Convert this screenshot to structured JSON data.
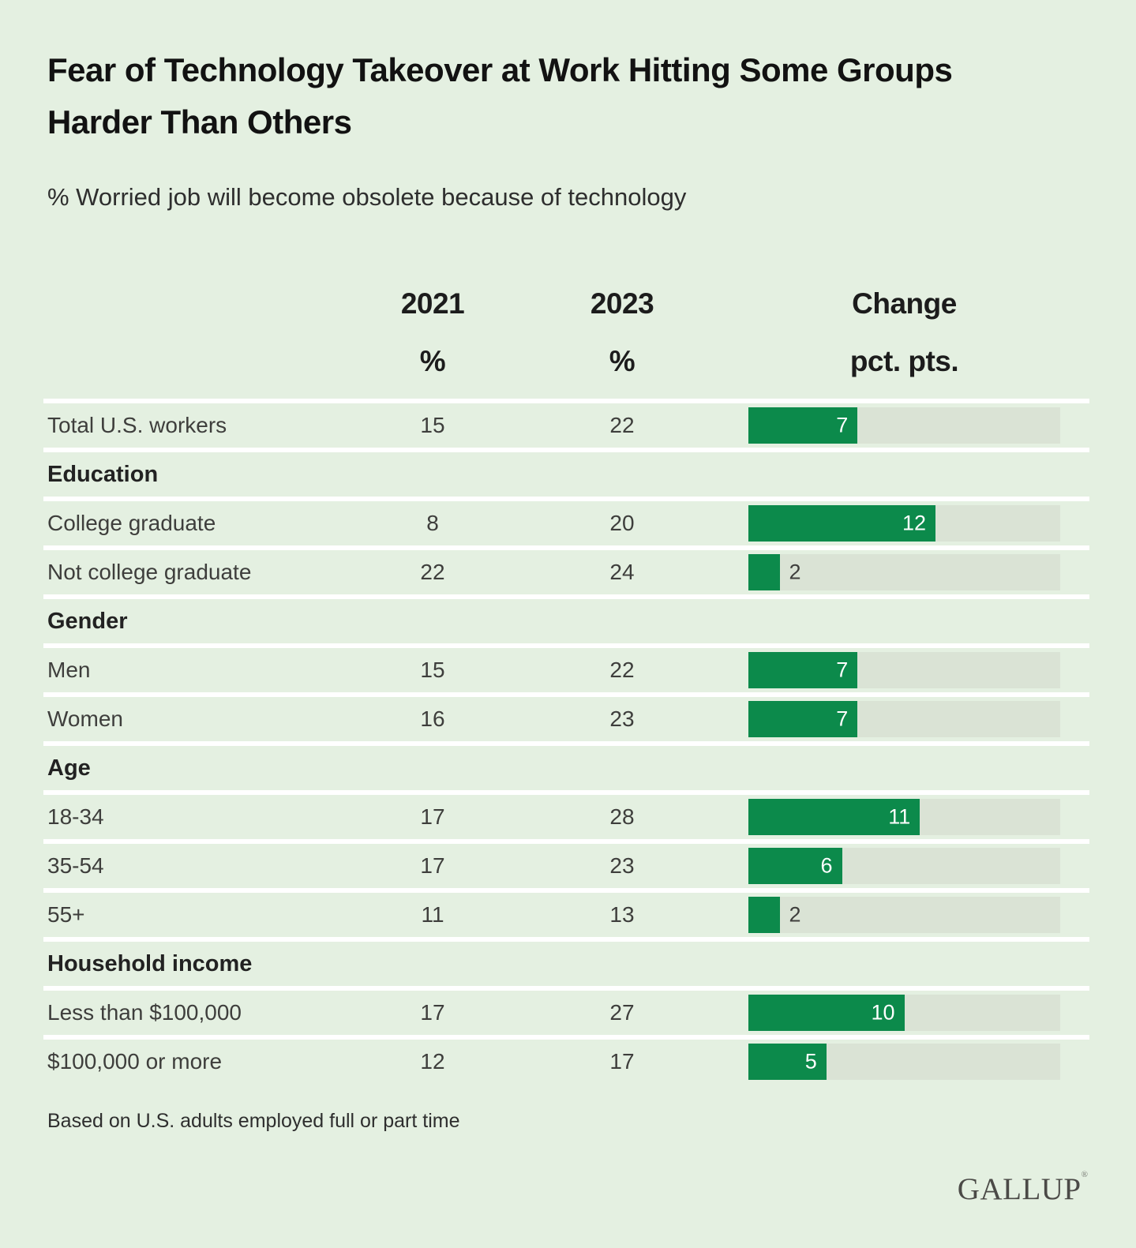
{
  "title": {
    "line1": "Fear of Technology Takeover at Work Hitting Some Groups",
    "line2": "Harder Than Others"
  },
  "subtitle": "% Worried job will become obsolete because of technology",
  "columns": {
    "year1": "2021",
    "year1_unit": "%",
    "year2": "2023",
    "year2_unit": "%",
    "change": "Change",
    "change_unit": "pct. pts."
  },
  "rows": [
    {
      "type": "data",
      "label": "Total U.S. workers",
      "y2021": "15",
      "y2023": "22",
      "change": 7
    },
    {
      "type": "section",
      "label": "Education"
    },
    {
      "type": "data",
      "label": "College graduate",
      "y2021": "8",
      "y2023": "20",
      "change": 12
    },
    {
      "type": "data",
      "label": "Not college graduate",
      "y2021": "22",
      "y2023": "24",
      "change": 2
    },
    {
      "type": "section",
      "label": "Gender"
    },
    {
      "type": "data",
      "label": "Men",
      "y2021": "15",
      "y2023": "22",
      "change": 7
    },
    {
      "type": "data",
      "label": "Women",
      "y2021": "16",
      "y2023": "23",
      "change": 7
    },
    {
      "type": "section",
      "label": "Age"
    },
    {
      "type": "data",
      "label": "18-34",
      "y2021": "17",
      "y2023": "28",
      "change": 11
    },
    {
      "type": "data",
      "label": "35-54",
      "y2021": "17",
      "y2023": "23",
      "change": 6
    },
    {
      "type": "data",
      "label": "55+",
      "y2021": "11",
      "y2023": "13",
      "change": 2
    },
    {
      "type": "section",
      "label": "Household income"
    },
    {
      "type": "data",
      "label": "Less than $100,000",
      "y2021": "17",
      "y2023": "27",
      "change": 10
    },
    {
      "type": "data",
      "label": "$100,000 or more",
      "y2021": "12",
      "y2023": "17",
      "change": 5
    }
  ],
  "footnote": "Based on U.S. adults employed full or part time",
  "logo": {
    "text": "GALLUP",
    "registered_mark": "®"
  },
  "colors": {
    "background": "#e4f0e1",
    "bar_fill": "#0c8a4b",
    "bar_track": "#dae3d5",
    "separator": "#ffffff",
    "title_text": "#121212",
    "body_text": "#3e3e3c"
  },
  "chart_data": {
    "type": "bar",
    "title": "Fear of Technology Takeover at Work Hitting Some Groups Harder Than Others",
    "subtitle": "% Worried job will become obsolete because of technology",
    "categories": [
      "Total U.S. workers",
      "College graduate",
      "Not college graduate",
      "Men",
      "Women",
      "18-34",
      "35-54",
      "55+",
      "Less than $100,000",
      "$100,000 or more"
    ],
    "groups": [
      {
        "name": "Education",
        "members": [
          "College graduate",
          "Not college graduate"
        ]
      },
      {
        "name": "Gender",
        "members": [
          "Men",
          "Women"
        ]
      },
      {
        "name": "Age",
        "members": [
          "18-34",
          "35-54",
          "55+"
        ]
      },
      {
        "name": "Household income",
        "members": [
          "Less than $100,000",
          "$100,000 or more"
        ]
      }
    ],
    "series": [
      {
        "name": "2021",
        "unit": "%",
        "values": [
          15,
          8,
          22,
          15,
          16,
          17,
          17,
          11,
          17,
          12
        ]
      },
      {
        "name": "2023",
        "unit": "%",
        "values": [
          22,
          20,
          24,
          22,
          23,
          28,
          23,
          13,
          27,
          17
        ]
      },
      {
        "name": "Change",
        "unit": "pct. pts.",
        "values": [
          7,
          12,
          2,
          7,
          7,
          11,
          6,
          2,
          10,
          5
        ]
      }
    ],
    "bar_axis": {
      "min": 0,
      "max": 20
    },
    "legend": "none",
    "grid": "off",
    "orientation": "horizontal",
    "footnote": "Based on U.S. adults employed full or part time",
    "source": "GALLUP"
  }
}
